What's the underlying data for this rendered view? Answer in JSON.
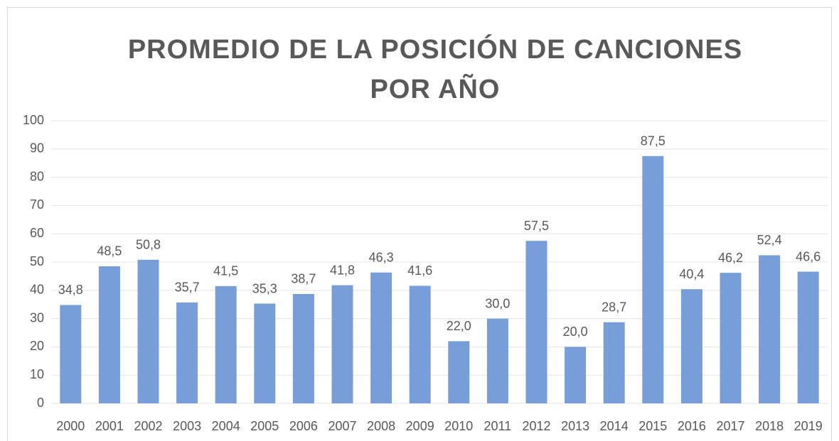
{
  "chart_data": {
    "type": "bar",
    "title": "PROMEDIO DE LA POSICIÓN DE CANCIONES POR AÑO",
    "categories": [
      "2000",
      "2001",
      "2002",
      "2003",
      "2004",
      "2005",
      "2006",
      "2007",
      "2008",
      "2009",
      "2010",
      "2011",
      "2012",
      "2013",
      "2014",
      "2015",
      "2016",
      "2017",
      "2018",
      "2019"
    ],
    "values": [
      34.8,
      48.5,
      50.8,
      35.7,
      41.5,
      35.3,
      38.7,
      41.8,
      46.3,
      41.6,
      22.0,
      30.0,
      57.5,
      20.0,
      28.7,
      87.5,
      40.4,
      46.2,
      52.4,
      46.6
    ],
    "value_labels": [
      "34,8",
      "48,5",
      "50,8",
      "35,7",
      "41,5",
      "35,3",
      "38,7",
      "41,8",
      "46,3",
      "41,6",
      "22,0",
      "30,0",
      "57,5",
      "20,0",
      "28,7",
      "87,5",
      "40,4",
      "46,2",
      "52,4",
      "46,6"
    ],
    "color": "#779ed8",
    "ylim": [
      0,
      100
    ],
    "yticks": [
      0,
      10,
      20,
      30,
      40,
      50,
      60,
      70,
      80,
      90,
      100
    ],
    "grid": true
  }
}
